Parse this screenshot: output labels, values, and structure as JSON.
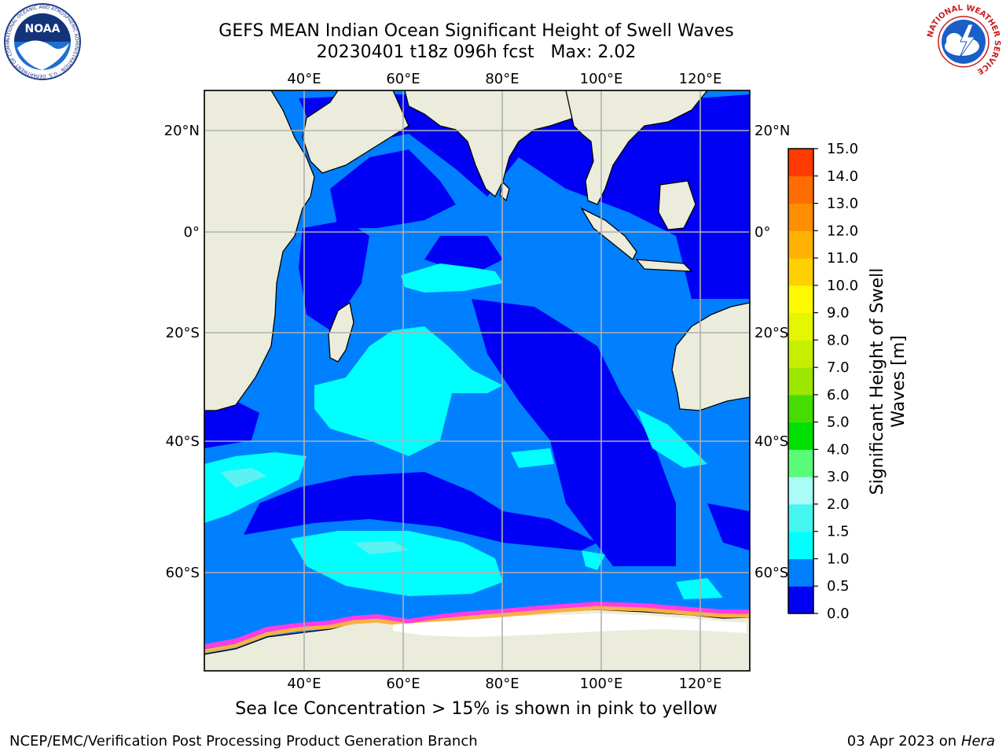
{
  "title_line1": "GEFS MEAN Indian Ocean Significant Height of Swell Waves",
  "title_line2": "20230401 t18z 096h fcst   Max: 2.02",
  "caption": "Sea Ice Concentration > 15% is shown in pink to yellow",
  "footer_left": "NCEP/EMC/Verification Post Processing Product Generation Branch",
  "footer_right_date": "03 Apr 2023 on",
  "footer_right_host": "Hera",
  "map": {
    "lon_range": [
      20,
      130
    ],
    "lat_range": [
      -73,
      27
    ],
    "lon_ticks": [
      "40°E",
      "60°E",
      "80°E",
      "100°E",
      "120°E"
    ],
    "lon_tick_values": [
      40,
      60,
      80,
      100,
      120
    ],
    "lat_ticks": [
      "20°N",
      "0°",
      "20°S",
      "40°S",
      "60°S"
    ],
    "lat_tick_values": [
      20,
      0,
      -20,
      -40,
      -60
    ],
    "grid": true,
    "colors": {
      "land": "#ececdc",
      "ocean_low": "#0000f5",
      "ocean_mid": "#0080ff",
      "ocean_high": "#00ffff",
      "ocean_higher": "#5cf2f2",
      "ice_pink": "#ff3ce6",
      "ice_orange": "#f8b040",
      "ice_white": "#ffffff"
    }
  },
  "colorbar": {
    "label_line1": "Significant Height of Swell",
    "label_line2": "Waves [m]",
    "tick_labels": [
      "0.0",
      "0.5",
      "1.0",
      "1.5",
      "2.0",
      "3.0",
      "4.0",
      "5.0",
      "6.0",
      "7.0",
      "8.0",
      "9.0",
      "10.0",
      "11.0",
      "12.0",
      "13.0",
      "14.0",
      "15.0"
    ],
    "bins": [
      "#0000f5",
      "#0080ff",
      "#00ffff",
      "#44f5f0",
      "#a9fcf7",
      "#5bfb7a",
      "#00e000",
      "#46dc00",
      "#9ce600",
      "#c6ef00",
      "#e6f500",
      "#fffa00",
      "#ffd000",
      "#ffb000",
      "#ff8e00",
      "#ff6d00",
      "#ff3a00",
      "#ff0000"
    ]
  },
  "logos": {
    "noaa_text": "NOAA",
    "noaa_ring_text": "NATIONAL OCEANIC AND ATMOSPHERIC ADMINISTRATION · U.S. DEPARTMENT OF COMMERCE",
    "nws_ring_text": "NATIONAL WEATHER SERVICE"
  }
}
